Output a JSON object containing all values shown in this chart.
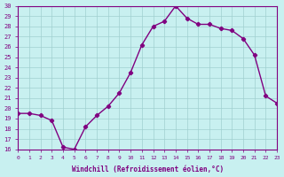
{
  "x": [
    0,
    1,
    2,
    3,
    4,
    5,
    6,
    7,
    8,
    9,
    10,
    11,
    12,
    13,
    14,
    15,
    16,
    17,
    18,
    19,
    20,
    21,
    22,
    23
  ],
  "y": [
    19.5,
    19.5,
    19.3,
    18.8,
    16.2,
    16.0,
    18.2,
    19.3,
    20.2,
    21.5,
    23.5,
    26.2,
    28.0,
    28.5,
    30.0,
    28.8,
    28.2,
    28.2,
    27.8,
    27.6,
    26.8,
    25.2,
    21.2,
    20.5
  ],
  "line_color": "#800080",
  "marker": "P",
  "marker_size": 3,
  "bg_color": "#c8f0f0",
  "grid_color": "#a0d0d0",
  "xlabel": "Windchill (Refroidissement éolien,°C)",
  "ylim": [
    16,
    30
  ],
  "xlim": [
    0,
    23
  ],
  "yticks": [
    16,
    17,
    18,
    19,
    20,
    21,
    22,
    23,
    24,
    25,
    26,
    27,
    28,
    29,
    30
  ],
  "xticks": [
    0,
    1,
    2,
    3,
    4,
    5,
    6,
    7,
    8,
    9,
    10,
    11,
    12,
    13,
    14,
    15,
    16,
    17,
    18,
    19,
    20,
    21,
    22,
    23
  ]
}
